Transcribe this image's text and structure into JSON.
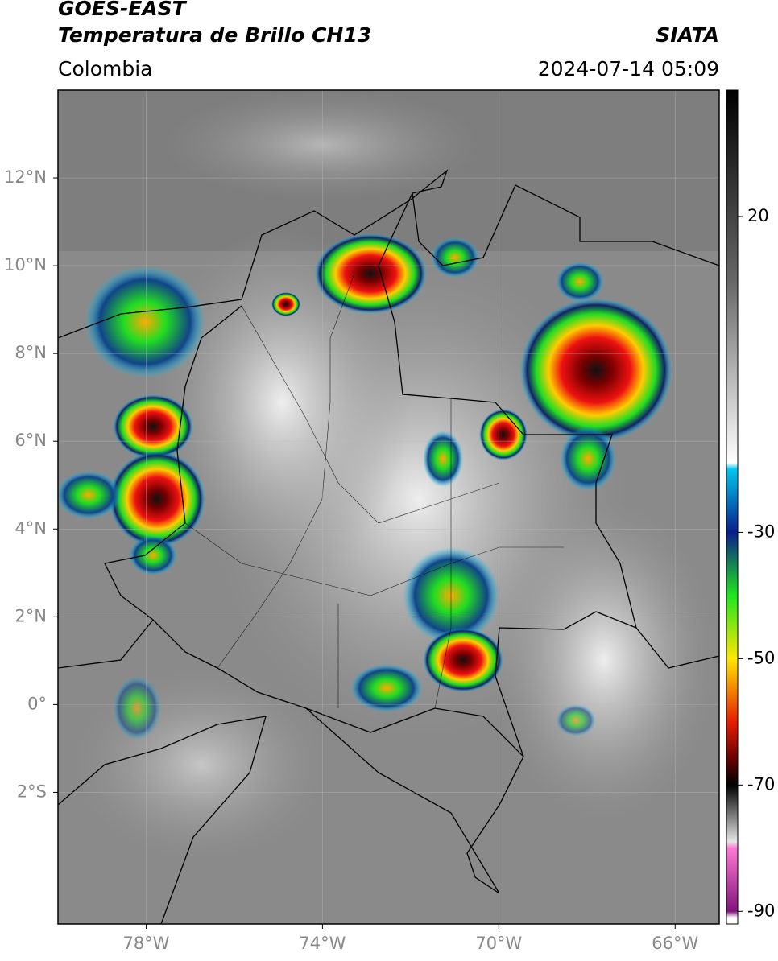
{
  "header": {
    "title": "GOES-EAST",
    "subtitle": "Temperatura de Brillo CH13",
    "source": "SIATA",
    "region": "Colombia",
    "datetime": "2024-07-14 05:09"
  },
  "map": {
    "lonlim": [
      -80,
      -65
    ],
    "latlim": [
      -5,
      14
    ],
    "lat_ticks": [
      {
        "value": 12,
        "label": "12°N"
      },
      {
        "value": 10,
        "label": "10°N"
      },
      {
        "value": 8,
        "label": "8°N"
      },
      {
        "value": 6,
        "label": "6°N"
      },
      {
        "value": 4,
        "label": "4°N"
      },
      {
        "value": 2,
        "label": "2°N"
      },
      {
        "value": 0,
        "label": "0°"
      },
      {
        "value": -2,
        "label": "2°S"
      }
    ],
    "lon_ticks": [
      {
        "value": -78,
        "label": "78°W"
      },
      {
        "value": -74,
        "label": "74°W"
      },
      {
        "value": -70,
        "label": "70°W"
      },
      {
        "value": -66,
        "label": "66°W"
      }
    ],
    "grid": true
  },
  "colorbar": {
    "lim": [
      -92,
      40
    ],
    "ticks": [
      20,
      -30,
      -50,
      -70,
      -90
    ],
    "colormap": [
      {
        "value": 40,
        "color": "#000000"
      },
      {
        "value": 10,
        "color": "#666666"
      },
      {
        "value": -19,
        "color": "#ffffff"
      },
      {
        "value": -20,
        "color": "#00c8f0"
      },
      {
        "value": -30,
        "color": "#0a1e8c"
      },
      {
        "value": -40,
        "color": "#1ee61e"
      },
      {
        "value": -50,
        "color": "#ffe600"
      },
      {
        "value": -60,
        "color": "#e61e00"
      },
      {
        "value": -66,
        "color": "#640000"
      },
      {
        "value": -70,
        "color": "#000000"
      },
      {
        "value": -79,
        "color": "#e6e6e6"
      },
      {
        "value": -80,
        "color": "#ff78d2"
      },
      {
        "value": -90,
        "color": "#82147d"
      },
      {
        "value": -91,
        "color": "#ffffff"
      }
    ]
  }
}
